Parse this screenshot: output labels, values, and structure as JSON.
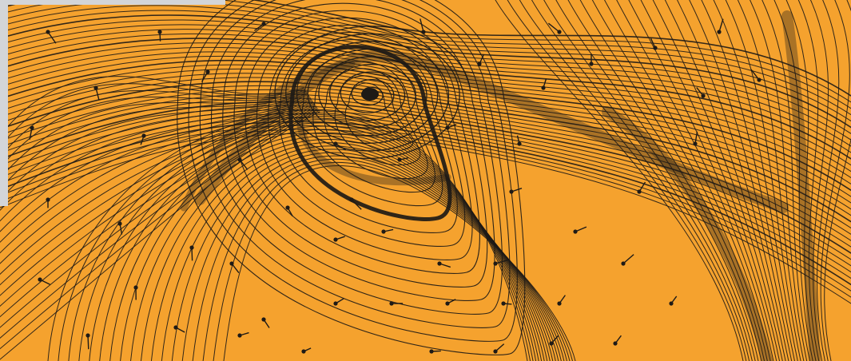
{
  "image": {
    "subject": "phase-portrait-streamlines",
    "colors": {
      "background": "#F5A22E",
      "ink": "#1E1A16",
      "page": "#FFFFFF",
      "corner_panel": "#D3D5D8"
    }
  }
}
